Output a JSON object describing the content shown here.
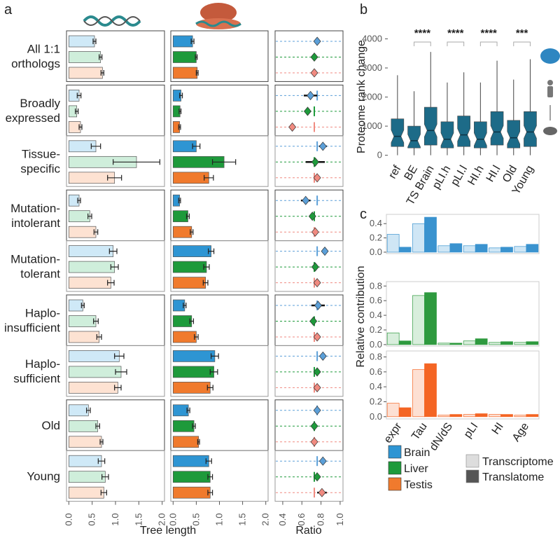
{
  "chart_data": [
    {
      "type": "tree-length",
      "label": "a",
      "categories": [
        [
          "All 1:1",
          "orthologs"
        ],
        [
          "Broadly",
          "expressed"
        ],
        [
          "Tissue-",
          "specific"
        ],
        [
          "Mutation-",
          "intolerant"
        ],
        [
          "Mutation-",
          "tolerant"
        ],
        [
          "Haplo-",
          "insufficient"
        ],
        [
          "Haplo-",
          "sufficient"
        ],
        [
          "Old"
        ],
        [
          "Young"
        ]
      ],
      "xlabel": "Tree length",
      "xlim": [
        -0.05,
        2.05
      ],
      "xticks": [
        {
          "value": 0,
          "label": "0.0"
        },
        0.5,
        {
          "value": 1,
          "label": "1.0"
        },
        1.5,
        {
          "value": 2,
          "label": "2.0"
        }
      ],
      "ratio_xlabel": "Ratio",
      "ratio_xlim": [
        0.32,
        1.03
      ],
      "ratio_xticks": [
        0.4,
        0.6,
        0.8,
        {
          "value": 1,
          "label": "1.0"
        }
      ],
      "series": [
        {
          "name": "Brain",
          "color_transcriptome": "#cfe9f7",
          "color_translatome": "#2e95d3",
          "color_ratio": "#5b9fd8",
          "transcriptome": [
            0.55,
            0.22,
            0.58,
            0.22,
            0.95,
            0.3,
            1.08,
            0.42,
            0.7
          ],
          "transcriptome_err": [
            0.03,
            0.04,
            0.1,
            0.03,
            0.08,
            0.03,
            0.1,
            0.04,
            0.07
          ],
          "translatome": [
            0.42,
            0.17,
            0.5,
            0.14,
            0.82,
            0.25,
            0.9,
            0.33,
            0.77
          ],
          "translatome_err": [
            0.03,
            0.03,
            0.08,
            0.02,
            0.06,
            0.03,
            0.08,
            0.03,
            0.06
          ],
          "ratio": [
            0.76,
            0.69,
            0.82,
            0.64,
            0.84,
            0.77,
            0.82,
            0.76,
            0.82
          ],
          "ratio_err": [
            0.02,
            0.07,
            0.04,
            0.05,
            0.03,
            0.07,
            0.03,
            0.03,
            0.03
          ]
        },
        {
          "name": "Liver",
          "color_transcriptome": "#cfeedb",
          "color_translatome": "#1e9a3b",
          "color_ratio": "#1e9a3b",
          "transcriptome": [
            0.68,
            0.17,
            1.45,
            0.45,
            0.98,
            0.58,
            1.12,
            0.62,
            0.78
          ],
          "transcriptome_err": [
            0.03,
            0.03,
            0.5,
            0.04,
            0.08,
            0.05,
            0.12,
            0.04,
            0.07
          ],
          "translatome": [
            0.5,
            0.15,
            1.1,
            0.32,
            0.72,
            0.4,
            0.88,
            0.45,
            0.8
          ],
          "translatome_err": [
            0.02,
            0.02,
            0.25,
            0.03,
            0.06,
            0.04,
            0.08,
            0.03,
            0.05
          ],
          "ratio": [
            0.73,
            0.66,
            0.74,
            0.71,
            0.74,
            0.72,
            0.76,
            0.73,
            0.76
          ],
          "ratio_err": [
            0.02,
            0.03,
            0.1,
            0.03,
            0.03,
            0.03,
            0.03,
            0.02,
            0.03
          ]
        },
        {
          "name": "Testis",
          "color_transcriptome": "#fde2d2",
          "color_translatome": "#f07a2d",
          "color_ratio": "#f08a80",
          "transcriptome": [
            0.72,
            0.25,
            0.98,
            0.58,
            0.9,
            0.65,
            1.05,
            0.7,
            0.75
          ],
          "transcriptome_err": [
            0.03,
            0.03,
            0.15,
            0.04,
            0.07,
            0.05,
            0.07,
            0.03,
            0.06
          ],
          "translatome": [
            0.52,
            0.14,
            0.77,
            0.4,
            0.7,
            0.5,
            0.8,
            0.55,
            0.8
          ],
          "translatome_err": [
            0.02,
            0.02,
            0.1,
            0.03,
            0.05,
            0.04,
            0.06,
            0.02,
            0.05
          ],
          "ratio": [
            0.73,
            0.5,
            0.76,
            0.74,
            0.76,
            0.76,
            0.76,
            0.73,
            0.81
          ],
          "ratio_err": [
            0.02,
            0.03,
            0.03,
            0.02,
            0.03,
            0.03,
            0.03,
            0.02,
            0.05
          ]
        }
      ]
    },
    {
      "type": "boxplot",
      "label": "b",
      "ylabel": "Proteome rank change",
      "categories": [
        "ref",
        "BE",
        "TS Brain",
        "pLI.h",
        "pLI.l",
        "HI.h",
        "HI.l",
        "Old",
        "Young"
      ],
      "low": [
        0,
        0,
        0,
        0,
        0,
        0,
        0,
        0,
        0
      ],
      "q1": [
        300,
        250,
        350,
        250,
        300,
        250,
        350,
        250,
        300
      ],
      "median": [
        650,
        500,
        850,
        550,
        700,
        550,
        800,
        600,
        800
      ],
      "q3": [
        1250,
        1000,
        1650,
        1150,
        1350,
        1150,
        1500,
        1200,
        1500
      ],
      "high": [
        2750,
        2200,
        3550,
        2500,
        2850,
        2500,
        3250,
        2600,
        3300
      ],
      "color": "#1d6b88",
      "annotations": [
        "****",
        "****",
        "****",
        "***"
      ],
      "ylim": [
        -250,
        4300
      ],
      "yticks": [
        0,
        1000,
        2000,
        3000,
        4000
      ]
    },
    {
      "type": "bar-panels",
      "label": "c",
      "ylabel": "Relative contribution",
      "categories": [
        "expr",
        "Tau",
        "dN/dS",
        "pLI",
        "HI",
        "Age"
      ],
      "legend": [
        {
          "name": "Transcriptome",
          "color": "#dddddd"
        },
        {
          "name": "Translatome",
          "color": "#555555"
        }
      ],
      "panels": [
        {
          "ylim": [
            -0.02,
            0.53
          ],
          "yticks": [
            {
              "value": 0,
              "label": "0.0"
            },
            0.2,
            0.4
          ],
          "series": [
            {
              "color": "#cfe6f5",
              "values": [
                0.25,
                0.4,
                0.09,
                0.09,
                0.06,
                0.08
              ]
            },
            {
              "color": "#3a93cf",
              "values": [
                0.07,
                0.49,
                0.12,
                0.11,
                0.07,
                0.11
              ]
            }
          ]
        },
        {
          "ylim": [
            -0.02,
            0.86
          ],
          "yticks": [
            {
              "value": 0,
              "label": "0.0"
            },
            0.2,
            0.4,
            0.6,
            0.8
          ],
          "series": [
            {
              "color": "#d8eedc",
              "values": [
                0.16,
                0.67,
                0.02,
                0.05,
                0.03,
                0.03
              ]
            },
            {
              "color": "#2e9a3f",
              "values": [
                0.05,
                0.71,
                0.02,
                0.08,
                0.04,
                0.04
              ]
            }
          ]
        },
        {
          "ylim": [
            -0.03,
            0.88
          ],
          "yticks": [
            {
              "value": 0,
              "label": "0.0"
            },
            0.2,
            0.4,
            0.6,
            0.8
          ],
          "series": [
            {
              "color": "#fde0d3",
              "values": [
                0.18,
                0.63,
                0.02,
                0.03,
                0.03,
                0.02
              ]
            },
            {
              "color": "#f46524",
              "values": [
                0.12,
                0.71,
                0.03,
                0.04,
                0.03,
                0.03
              ]
            }
          ]
        }
      ]
    }
  ]
}
